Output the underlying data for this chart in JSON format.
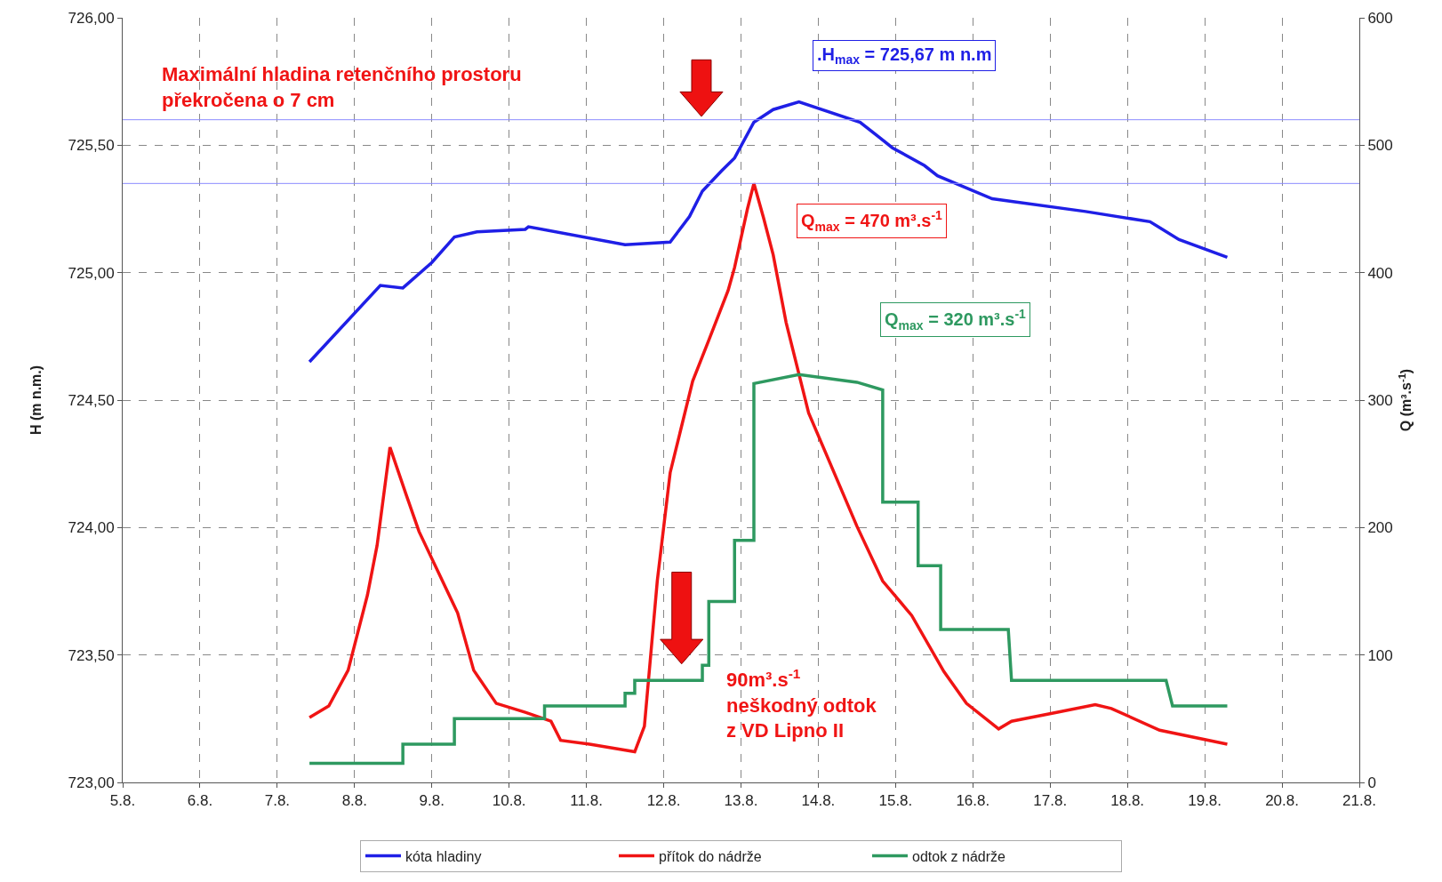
{
  "chart_data": {
    "type": "line",
    "ylabel": "H (m n.m.)",
    "y2label": "Q (m³.s$^{-1}$)",
    "xlim": [
      "--08-05",
      "--08-21"
    ],
    "xticks": [
      {
        "value": "--08-05",
        "label": "5.8."
      },
      {
        "value": "--08-06",
        "label": "6.8."
      },
      {
        "value": "--08-07",
        "label": "7.8."
      },
      {
        "value": "--08-08",
        "label": "8.8."
      },
      {
        "value": "--08-09",
        "label": "9.8."
      },
      {
        "value": "--08-10",
        "label": "10.8."
      },
      {
        "value": "--08-11",
        "label": "11.8."
      },
      {
        "value": "--08-12",
        "label": "12.8."
      },
      {
        "value": "--08-13",
        "label": "13.8."
      },
      {
        "value": "--08-14",
        "label": "14.8."
      },
      {
        "value": "--08-15",
        "label": "15.8."
      },
      {
        "value": "--08-16",
        "label": "16.8."
      },
      {
        "value": "--08-17",
        "label": "17.8."
      },
      {
        "value": "--08-18",
        "label": "18.8."
      },
      {
        "value": "--08-19",
        "label": "19.8."
      },
      {
        "value": "--08-20",
        "label": "20.8."
      },
      {
        "value": "--08-21",
        "label": "21.8."
      }
    ],
    "ylim": [
      723,
      726
    ],
    "yticks": [
      {
        "value": 723,
        "label": "723,00"
      },
      {
        "value": 723.5,
        "label": "723,50"
      },
      {
        "value": 724,
        "label": "724,00"
      },
      {
        "value": 724.5,
        "label": "724,50"
      },
      {
        "value": 725,
        "label": "725,00"
      },
      {
        "value": 725.5,
        "label": "725,50"
      },
      {
        "value": 726,
        "label": "726,00"
      }
    ],
    "y2lim": [
      0,
      600
    ],
    "y2ticks": [
      0,
      100,
      200,
      300,
      400,
      500,
      600
    ],
    "grid": true,
    "legend": "bottom",
    "marker": "none",
    "line_style": "solid",
    "series": [
      {
        "name": "kóta hladiny",
        "color": "#1f1fe6",
        "x": [
          "--08-07T10:00",
          "--08-08T08:00",
          "--08-08T15:00",
          "--08-09T00:00",
          "--08-09T07:00",
          "--08-09T14:00",
          "--08-10T05:00",
          "--08-10T06:00",
          "--08-11T12:00",
          "--08-12T02:00",
          "--08-12T08:00",
          "--08-12T12:00",
          "--08-12T15:00",
          "--08-12T18:00",
          "--08-12T22:00",
          "--08-13T04:00",
          "--08-13T10:00",
          "--08-13T18:00",
          "--08-14T13:00",
          "--08-14T19:00",
          "--08-14T23:00",
          "--08-15T09:00",
          "--08-15T13:00",
          "--08-16T06:00",
          "--08-16T12:00",
          "--08-17T11:00",
          "--08-18T07:00",
          "--08-18T16:00",
          "--08-19T07:00"
        ],
        "values": [
          724.65,
          724.95,
          724.94,
          725.04,
          725.14,
          725.16,
          725.17,
          725.18,
          725.11,
          725.12,
          725.22,
          725.32,
          725.36,
          725.4,
          725.45,
          725.59,
          725.64,
          725.67,
          725.59,
          725.53,
          725.49,
          725.42,
          725.38,
          725.29,
          725.28,
          725.24,
          725.2,
          725.13,
          725.06
        ]
      },
      {
        "name": "přítok do nádrže",
        "color": "#f01414",
        "axis": "y2",
        "x": [
          "--08-07T10:00",
          "--08-07T16:00",
          "--08-07T22:00",
          "--08-08T04:00",
          "--08-08T07:00",
          "--08-08T11:00",
          "--08-08T16:00",
          "--08-08T20:00",
          "--08-09T08:00",
          "--08-09T13:00",
          "--08-09T20:00",
          "--08-10T05:00",
          "--08-10T13:00",
          "--08-10T16:00",
          "--08-11T01:00",
          "--08-11T15:00",
          "--08-11T18:00",
          "--08-11T22:00",
          "--08-12T02:00",
          "--08-12T09:00",
          "--08-12T14:00",
          "--08-12T20:00",
          "--08-12T22:00",
          "--08-13T02:00",
          "--08-13T04:00",
          "--08-13T07:00",
          "--08-13T10:00",
          "--08-13T14:00",
          "--08-13T21:00",
          "--08-14T12:00",
          "--08-14T20:00",
          "--08-15T05:00",
          "--08-15T15:00",
          "--08-15T22:00",
          "--08-16T08:00",
          "--08-16T12:00",
          "--08-17T02:00",
          "--08-17T14:00",
          "--08-17T19:00",
          "--08-18T10:00",
          "--08-19T07:00"
        ],
        "values": [
          51,
          60,
          88,
          147,
          186,
          263,
          226,
          197,
          133,
          88,
          62,
          55,
          48,
          33,
          30,
          24,
          44,
          158,
          243,
          315,
          347,
          386,
          404,
          450,
          470,
          443,
          414,
          361,
          290,
          201,
          158,
          131,
          87,
          62,
          42,
          48,
          55,
          61,
          58,
          41,
          30
        ]
      },
      {
        "name": "odtok z nádrže",
        "color": "#2e9960",
        "axis": "y2",
        "x": [
          "--08-07T10:00",
          "--08-08T15:00",
          "--08-08T15:00",
          "--08-09T07:00",
          "--08-09T07:00",
          "--08-10T11:00",
          "--08-10T11:00",
          "--08-11T12:00",
          "--08-11T12:00",
          "--08-11T15:00",
          "--08-11T15:00",
          "--08-12T12:00",
          "--08-12T12:00",
          "--08-12T14:00",
          "--08-12T14:00",
          "--08-12T22:00",
          "--08-12T22:00",
          "--08-13T04:00",
          "--08-13T04:00",
          "--08-13T18:00",
          "--08-14T12:00",
          "--08-14T20:00",
          "--08-14T20:00",
          "--08-15T07:00",
          "--08-15T07:00",
          "--08-15T14:00",
          "--08-15T14:00",
          "--08-16T11:00",
          "--08-16T12:00",
          "--08-18T12:00",
          "--08-18T14:00",
          "--08-19T07:00"
        ],
        "values": [
          15,
          15,
          30,
          30,
          50,
          50,
          60,
          60,
          70,
          70,
          80,
          80,
          92,
          92,
          142,
          142,
          190,
          190,
          313,
          320,
          314,
          308,
          220,
          220,
          170,
          170,
          120,
          120,
          80,
          80,
          60,
          60
        ]
      }
    ],
    "ref_lines": [
      {
        "axis": "y",
        "value": 725.6,
        "color": "#8c8cff"
      },
      {
        "axis": "y",
        "value": 725.35,
        "color": "#8c8cff"
      }
    ],
    "annotations": [
      "Maximální hladina retenčního prostoru\npřekročena o 7 cm",
      ".H$_{max}$ = 725,67 m n.m",
      "Q$_{max}$ = 470 m³.s$^{-1}$",
      "Q$_{max}$ = 320 m³.s$^{-1}$",
      "90m³.s$^{-1}$\nneškodný odtok\nz VD Lipno II"
    ]
  }
}
